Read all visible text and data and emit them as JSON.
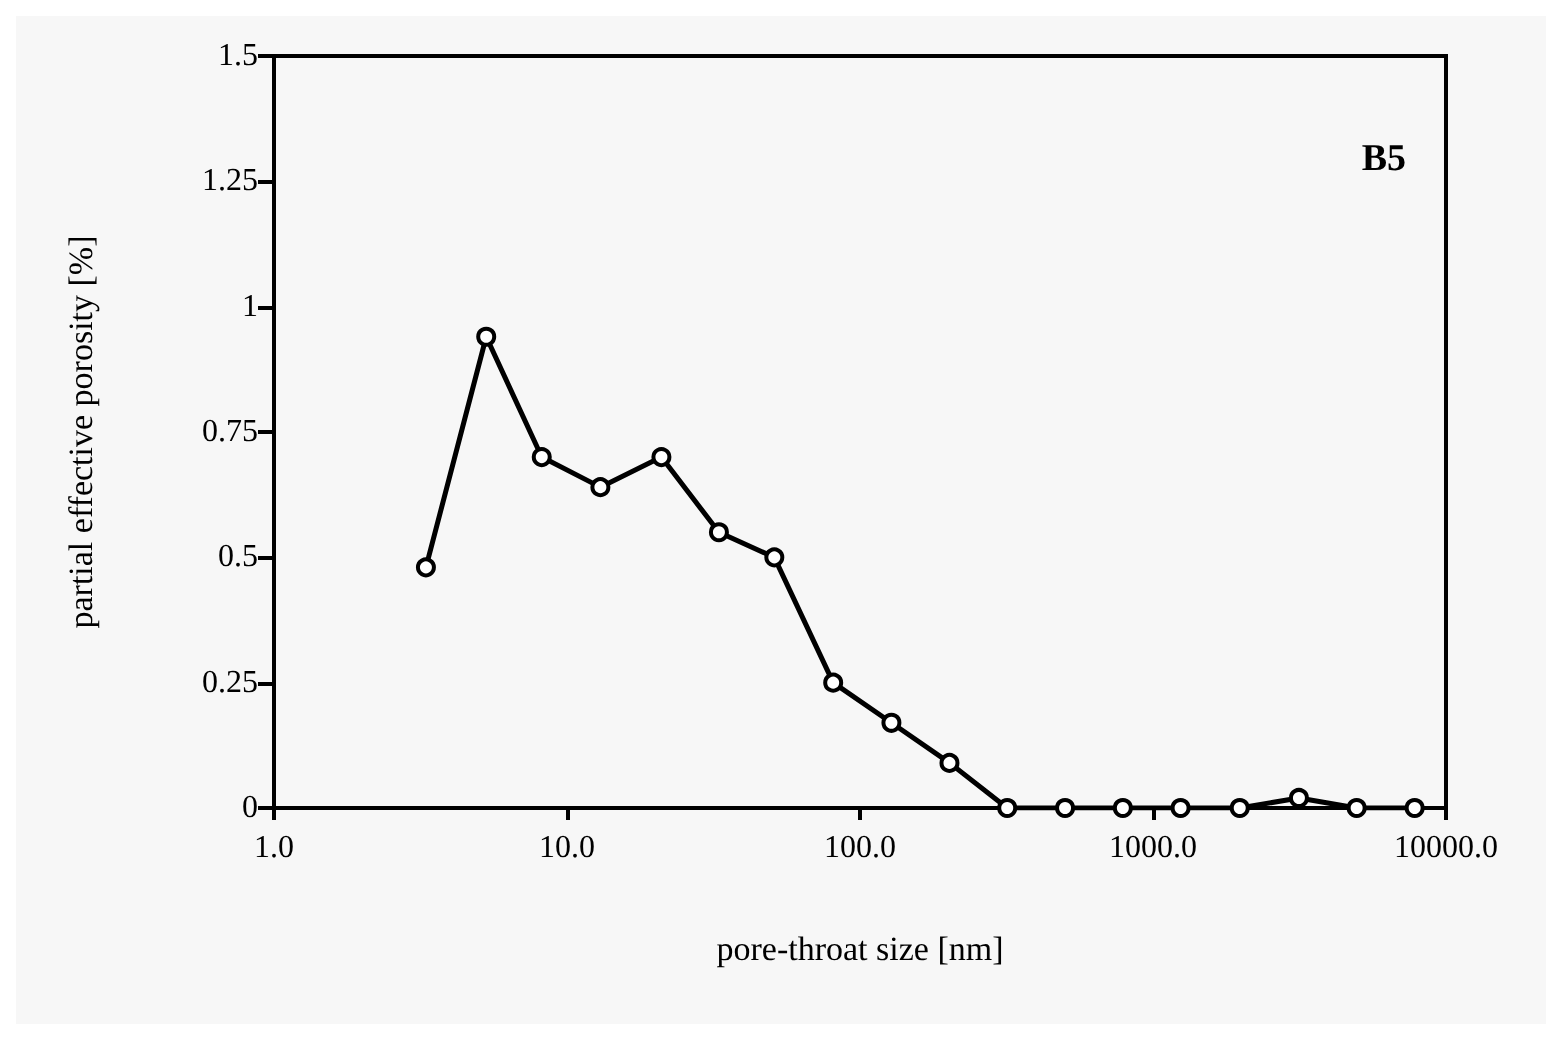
{
  "chart_data": {
    "type": "line",
    "xlabel": "pore-throat size [nm]",
    "ylabel": "partial effective porosity [%]",
    "annotations": [
      "B5"
    ],
    "x": [
      3.3,
      5.3,
      8.2,
      13,
      21,
      33,
      51,
      81,
      128,
      202,
      318,
      501,
      789,
      1242,
      1977,
      3148,
      4955,
      7816
    ],
    "series": [
      {
        "color": "#000000",
        "values": [
          0.48,
          0.94,
          0.7,
          0.64,
          0.7,
          0.55,
          0.5,
          0.25,
          0.17,
          0.09,
          0,
          0,
          0,
          0,
          0,
          0.02,
          0,
          0
        ]
      }
    ],
    "log": "x",
    "xlim": [
      1,
      10000
    ],
    "xticks": [
      {
        "value": 1,
        "label": "1.0"
      },
      {
        "value": 10,
        "label": "10.0"
      },
      {
        "value": 100,
        "label": "100.0"
      },
      {
        "value": 1000,
        "label": "1000.0"
      },
      {
        "value": 10000,
        "label": "10000.0"
      }
    ],
    "ylim": [
      0,
      1.5
    ],
    "yticks": [
      0,
      0.25,
      0.5,
      0.75,
      1,
      1.25,
      1.5
    ],
    "grid": false,
    "marker": "circle",
    "line_style": "solid"
  }
}
